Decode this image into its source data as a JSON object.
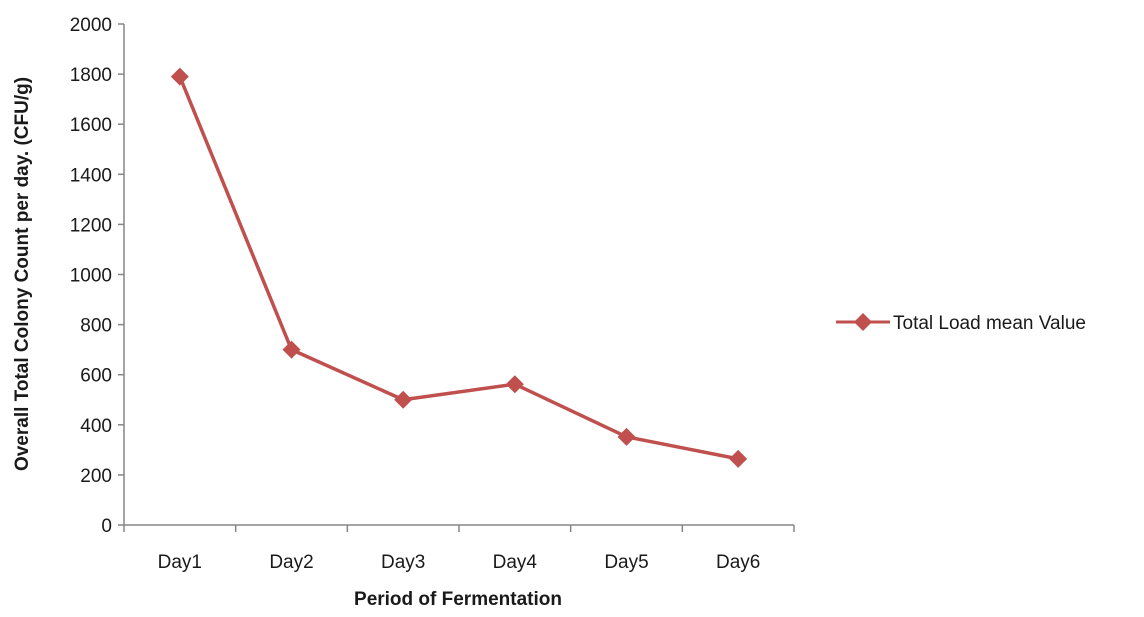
{
  "chart_data": {
    "type": "line",
    "title": "",
    "xlabel": "Period of Fermentation",
    "ylabel": "Overall Total Colony Count per day. (CFU/g)",
    "categories": [
      "Day1",
      "Day2",
      "Day3",
      "Day4",
      "Day5",
      "Day6"
    ],
    "series": [
      {
        "name": "Total Load mean Value",
        "values": [
          1790,
          700,
          500,
          562,
          352,
          264
        ],
        "color": "#c0504d"
      }
    ],
    "ylim": [
      0,
      2000
    ],
    "yticks": [
      0,
      200,
      400,
      600,
      800,
      1000,
      1200,
      1400,
      1600,
      1800,
      2000
    ],
    "grid": false,
    "legend_position": "right",
    "marker": "diamond"
  }
}
